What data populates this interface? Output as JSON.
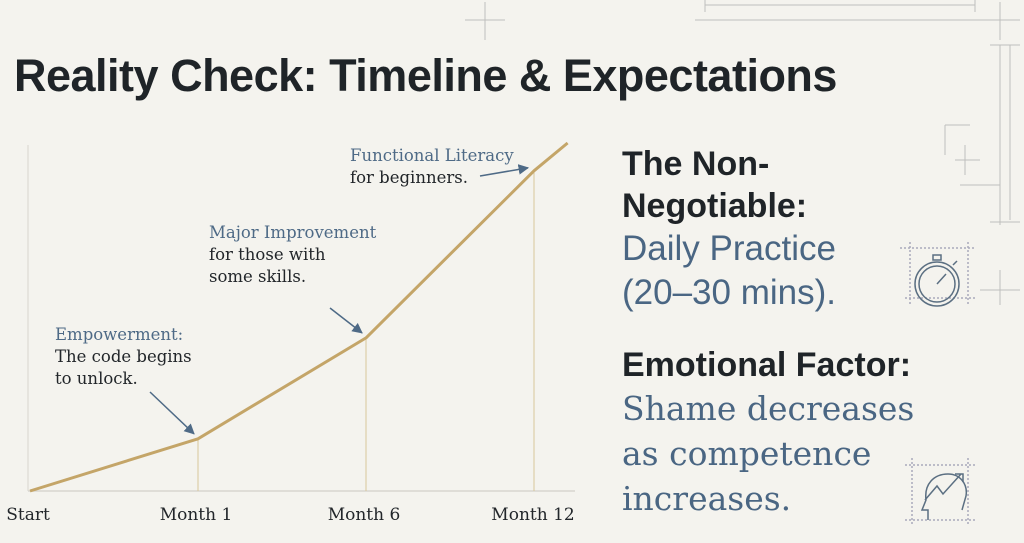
{
  "title": "Reality Check: Timeline & Expectations",
  "chart_data": {
    "type": "line",
    "categories": [
      "Start",
      "Month 1",
      "Month 6",
      "Month 12"
    ],
    "x": [
      0,
      1,
      2,
      3,
      3.2
    ],
    "values": [
      0,
      15,
      44,
      92,
      100
    ],
    "ylim": [
      0,
      100
    ],
    "xlabel": "",
    "ylabel": "",
    "grid": false,
    "line_color": "#c4a568",
    "annotations": [
      {
        "target": "Month 1",
        "heading": "Empowerment:",
        "lines": [
          "The code begins",
          "to unlock."
        ]
      },
      {
        "target": "Month 6",
        "heading": "Major Improvement",
        "lines": [
          "for those with",
          "some skills."
        ]
      },
      {
        "target": "Month 12",
        "heading": "Functional Literacy",
        "lines": [
          "for beginners."
        ]
      }
    ]
  },
  "right": {
    "block1_heading": [
      "The Non-",
      "Negotiable:"
    ],
    "block1_body": [
      "Daily Practice",
      "(20–30 mins)."
    ],
    "block2_heading": "Emotional Factor:",
    "block2_body": [
      "Shame decreases",
      "as competence",
      "increases."
    ]
  },
  "icons": [
    "stopwatch-icon",
    "head-growth-arrow-icon"
  ]
}
